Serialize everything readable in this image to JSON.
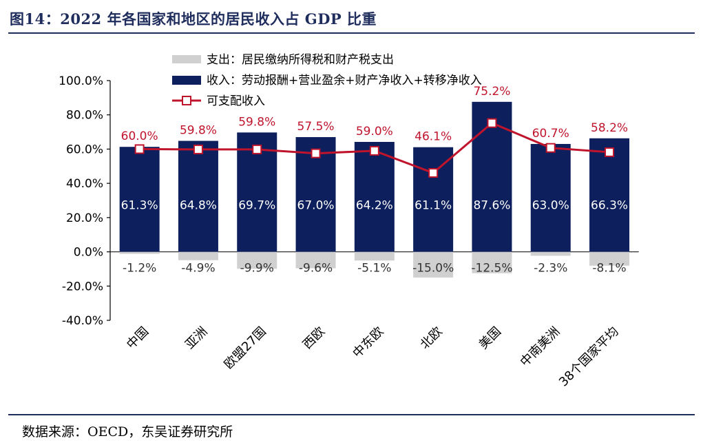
{
  "figure": {
    "title": "图14：2022 年各国家和地区的居民收入占 GDP 比重",
    "source": "数据来源：OECD，东吴证券研究所"
  },
  "colors": {
    "title": "#1f2d5c",
    "income_bar": "#0d1f5c",
    "expense_bar": "#d0d0d0",
    "disposable_line": "#c0142c",
    "bar_label": "#ffffff",
    "line_label": "#c0142c",
    "neg_label": "#333333"
  },
  "chart_data": {
    "type": "bar",
    "categories": [
      "中国",
      "亚洲",
      "欧盟27国",
      "西欧",
      "中东欧",
      "北欧",
      "美国",
      "中南美洲",
      "38个国家平均"
    ],
    "series": [
      {
        "name": "支出：居民缴纳所得税和财产税支出",
        "type": "bar",
        "values": [
          -1.2,
          -4.9,
          -9.9,
          -9.6,
          -5.1,
          -15.0,
          -12.5,
          -2.3,
          -8.1
        ],
        "labels": [
          "-1.2%",
          "-4.9%",
          "-9.9%",
          "-9.6%",
          "-5.1%",
          "-15.0%",
          "-12.5%",
          "-2.3%",
          "-8.1%"
        ]
      },
      {
        "name": "收入：劳动报酬+营业盈余+财产净收入+转移净收入",
        "type": "bar",
        "values": [
          61.3,
          64.8,
          69.7,
          67.0,
          64.2,
          61.1,
          87.6,
          63.0,
          66.3
        ],
        "labels": [
          "61.3%",
          "64.8%",
          "69.7%",
          "67.0%",
          "64.2%",
          "61.1%",
          "87.6%",
          "63.0%",
          "66.3%"
        ]
      },
      {
        "name": "可支配收入",
        "type": "line",
        "values": [
          60.0,
          59.8,
          59.8,
          57.5,
          59.0,
          46.1,
          75.2,
          60.7,
          58.2
        ],
        "labels": [
          "60.0%",
          "59.8%",
          "59.8%",
          "57.5%",
          "59.0%",
          "46.1%",
          "75.2%",
          "60.7%",
          "58.2%"
        ]
      }
    ],
    "ylim": [
      -40,
      100
    ],
    "yticks": [
      100,
      80,
      60,
      40,
      20,
      0,
      -20,
      -40
    ],
    "ytick_labels": [
      "100.0%",
      "80.0%",
      "60.0%",
      "40.0%",
      "20.0%",
      "0.0%",
      "-20.0%",
      "-40.0%"
    ],
    "legend_position": "top-center",
    "grid": false
  }
}
